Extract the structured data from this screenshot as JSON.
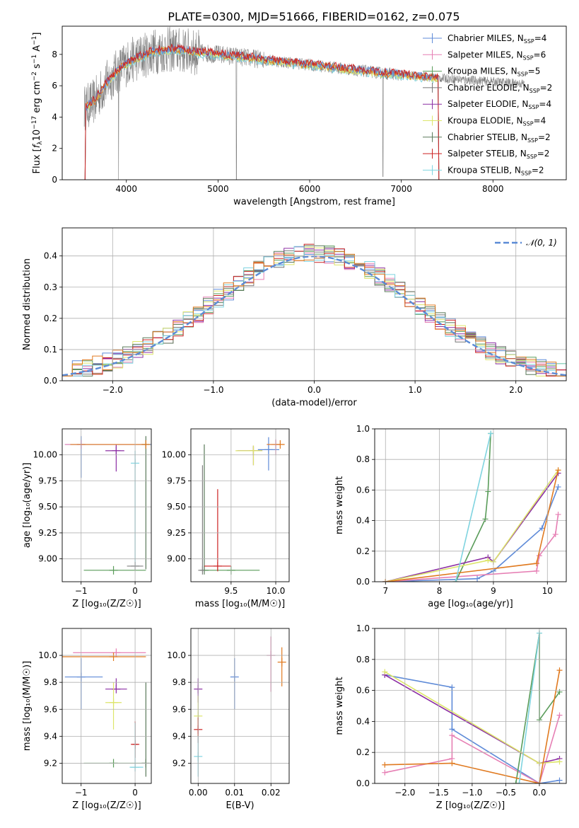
{
  "title": "PLATE=0300, MJD=51666, FIBERID=0162, z=0.075",
  "colors": {
    "Chabrier MILES": "#5f8bd8",
    "Salpeter MILES": "#e67fb4",
    "Kroupa MILES": "#5a9c5a",
    "Chabrier ELODIE": "#777777",
    "Salpeter ELODIE": "#8c2fa4",
    "Kroupa ELODIE": "#dde56a",
    "Chabrier STELIB": "#5a7a5a",
    "Salpeter STELIB": "#cc2222",
    "Kroupa STELIB": "#7fd4e0",
    "orange": "#e07a20",
    "spectrum": "#808080",
    "normal": "#5b8bd6"
  },
  "chart_data": [
    {
      "id": "spectrum",
      "type": "line",
      "xlabel": "wavelength [Angstrom, rest frame]",
      "ylabel_parts": [
        "Flux [",
        "f",
        "λ",
        "10",
        "−17",
        " erg cm",
        "−2",
        " s",
        "−1",
        " A",
        "−1",
        "]"
      ],
      "xlim": [
        3300,
        8800
      ],
      "ylim": [
        0,
        9.8
      ],
      "xticks": [
        4000,
        5000,
        6000,
        7000,
        8000
      ],
      "yticks": [
        0,
        2,
        4,
        6,
        8
      ],
      "grid": false,
      "legend_position": "right",
      "legend": [
        {
          "name": "Chabrier MILES",
          "nssp": "4",
          "color": "#5f8bd8"
        },
        {
          "name": "Salpeter MILES",
          "nssp": "6",
          "color": "#e67fb4"
        },
        {
          "name": "Kroupa MILES",
          "nssp": "5",
          "color": "#5a9c5a"
        },
        {
          "name": "Chabrier ELODIE",
          "nssp": "2",
          "color": "#777777"
        },
        {
          "name": "Salpeter ELODIE",
          "nssp": "4",
          "color": "#8c2fa4"
        },
        {
          "name": "Kroupa ELODIE",
          "nssp": "4",
          "color": "#dde56a"
        },
        {
          "name": "Chabrier STELIB",
          "nssp": "2",
          "color": "#5a7a5a"
        },
        {
          "name": "Salpeter STELIB",
          "nssp": "2",
          "color": "#cc2222"
        },
        {
          "name": "Kroupa STELIB",
          "nssp": "2",
          "color": "#7fd4e0"
        }
      ],
      "nssp_prefix": "N",
      "nssp_sub": "SSP",
      "continuum": {
        "x": [
          3550,
          3650,
          3800,
          3950,
          4050,
          4300,
          4500,
          4800,
          5000,
          5300,
          5600,
          5900,
          6200,
          6500,
          6800,
          7000,
          7200,
          7400
        ],
        "y": [
          4.6,
          5.0,
          6.3,
          7.2,
          7.6,
          8.2,
          8.3,
          8.1,
          8.0,
          7.8,
          7.6,
          7.4,
          7.2,
          7.0,
          6.8,
          6.7,
          6.6,
          6.5
        ]
      }
    },
    {
      "id": "residuals",
      "type": "step",
      "xlabel": "(data-model)/error",
      "ylabel": "Normed distribution",
      "xlim": [
        -2.5,
        2.5
      ],
      "ylim": [
        0,
        0.49
      ],
      "xticks": [
        -2,
        -1,
        0,
        1,
        2
      ],
      "yticks": [
        0.0,
        0.1,
        0.2,
        0.3,
        0.4
      ],
      "grid": true,
      "legend_position": "top-right",
      "legend_label": "𝒩(0, 1)",
      "normal": {
        "mean": 0,
        "sigma": 1
      }
    },
    {
      "id": "age-vs-Z",
      "type": "errorbar",
      "xlabel": "Z [log₁₀(Z/Z☉)]",
      "ylabel": "age  [log₁₀(age/yr)]",
      "xlim": [
        -1.35,
        0.3
      ],
      "ylim": [
        8.78,
        10.25
      ],
      "xticks": [
        -1,
        0
      ],
      "yticks": [
        9.0,
        9.25,
        9.5,
        9.75,
        10.0
      ],
      "grid": true,
      "points": [
        {
          "x": -1.0,
          "y": 10.1,
          "xl": 0.3,
          "xh": 1.3,
          "yl": 0.32,
          "yh": 0.08,
          "c": "#5f8bd8"
        },
        {
          "x": -1.0,
          "y": 10.1,
          "xl": 0.3,
          "xh": 1.2,
          "yl": 0.0,
          "yh": 0.0,
          "c": "#e67fb4"
        },
        {
          "x": -0.35,
          "y": 10.04,
          "xl": 0.2,
          "xh": 0.15,
          "yl": 0.2,
          "yh": 0.06,
          "c": "#8c2fa4"
        },
        {
          "x": 0.0,
          "y": 9.92,
          "xl": 0.0,
          "xh": 0.0,
          "yl": 1.0,
          "yh": 0.12,
          "c": "#7fd4e0"
        },
        {
          "x": 0.2,
          "y": 10.1,
          "xl": 0.0,
          "xh": 0.0,
          "yl": 1.2,
          "yh": 0.08,
          "c": "#5a7a5a"
        },
        {
          "x": 0.2,
          "y": 10.1,
          "xl": 1.4,
          "xh": 0.0,
          "yl": 0.0,
          "yh": 0.0,
          "c": "#e07a20"
        },
        {
          "x": -0.4,
          "y": 8.89,
          "xl": 0.55,
          "xh": 0.6,
          "yl": 0.0,
          "yh": 0.0,
          "c": "#5a9c5a"
        },
        {
          "x": 0.0,
          "y": 8.93,
          "xl": 0.15,
          "xh": 0.15,
          "yl": 0.0,
          "yh": 0.0,
          "c": "#808080"
        }
      ]
    },
    {
      "id": "age-vs-mass",
      "type": "errorbar",
      "xlabel": "mass [log₁₀(M/M☉)]",
      "xlim": [
        9.05,
        10.15
      ],
      "ylim": [
        8.78,
        10.25
      ],
      "xticks": [
        9.5,
        10.0
      ],
      "yticks": [
        9.0,
        9.25,
        9.5,
        9.75,
        10.0
      ],
      "grid": true,
      "points": [
        {
          "x": 9.92,
          "y": 10.05,
          "xl": 0.12,
          "xh": 0.12,
          "yl": 0.2,
          "yh": 0.12,
          "c": "#5f8bd8"
        },
        {
          "x": 10.0,
          "y": 10.1,
          "xl": 0.1,
          "xh": 0.05,
          "yl": 0.1,
          "yh": 0.05,
          "c": "#e67fb4"
        },
        {
          "x": 9.75,
          "y": 10.04,
          "xl": 0.18,
          "xh": 0.1,
          "yl": 0.14,
          "yh": 0.05,
          "c": "#8c2fa4"
        },
        {
          "x": 9.75,
          "y": 10.04,
          "xl": 0.2,
          "xh": 0.1,
          "yl": 0.14,
          "yh": 0.05,
          "c": "#dde56a"
        },
        {
          "x": 10.05,
          "y": 10.1,
          "xl": 0.15,
          "xh": 0.05,
          "yl": 0.0,
          "yh": 0.0,
          "c": "#e07a20"
        },
        {
          "x": 9.2,
          "y": 8.89,
          "xl": 0.0,
          "xh": 0.0,
          "yl": 0.0,
          "yh": 1.21,
          "c": "#5a7a5a"
        },
        {
          "x": 9.18,
          "y": 8.89,
          "xl": 0.0,
          "xh": 0.0,
          "yl": 0.0,
          "yh": 1.01,
          "c": "#808080"
        },
        {
          "x": 9.5,
          "y": 8.89,
          "xl": 0.3,
          "xh": 0.32,
          "yl": 0.0,
          "yh": 0.0,
          "c": "#5a9c5a"
        },
        {
          "x": 9.35,
          "y": 8.93,
          "xl": 0.15,
          "xh": 0.15,
          "yl": 0.05,
          "yh": 0.74,
          "c": "#cc2222"
        }
      ]
    },
    {
      "id": "massweight-vs-age",
      "type": "line",
      "xlabel": "age  [log₁₀(age/yr)]",
      "ylabel": "mass weight",
      "xlim": [
        6.8,
        10.35
      ],
      "ylim": [
        0,
        1.0
      ],
      "xticks": [
        7,
        8,
        9,
        10
      ],
      "yticks": [
        0.0,
        0.2,
        0.4,
        0.6,
        0.8,
        1.0
      ],
      "grid": true,
      "series": [
        {
          "c": "#5f8bd8",
          "x": [
            7.0,
            8.7,
            9.0,
            9.9,
            10.2
          ],
          "y": [
            0.0,
            0.02,
            0.07,
            0.35,
            0.62
          ]
        },
        {
          "c": "#e67fb4",
          "x": [
            7.0,
            9.8,
            9.85,
            10.15,
            10.2
          ],
          "y": [
            0.0,
            0.07,
            0.17,
            0.31,
            0.44
          ]
        },
        {
          "c": "#5a9c5a",
          "x": [
            8.3,
            8.85,
            8.9,
            8.95
          ],
          "y": [
            0.0,
            0.41,
            0.59,
            0.97
          ]
        },
        {
          "c": "#8c2fa4",
          "x": [
            7.0,
            8.9,
            9.0,
            10.2
          ],
          "y": [
            0.0,
            0.16,
            0.13,
            0.71
          ]
        },
        {
          "c": "#dde56a",
          "x": [
            7.0,
            8.9,
            9.0,
            10.2
          ],
          "y": [
            0.0,
            0.14,
            0.13,
            0.73
          ]
        },
        {
          "c": "#e07a20",
          "x": [
            7.0,
            9.8,
            10.2
          ],
          "y": [
            0.0,
            0.12,
            0.73
          ]
        },
        {
          "c": "#7fd4e0",
          "x": [
            8.3,
            8.95
          ],
          "y": [
            0.0,
            0.97
          ]
        }
      ]
    },
    {
      "id": "mass-vs-Z",
      "type": "errorbar",
      "xlabel": "Z [log₁₀(Z/Z☉)]",
      "ylabel": "mass [log₁₀(M/M☉)]",
      "xlim": [
        -1.35,
        0.3
      ],
      "ylim": [
        9.05,
        10.2
      ],
      "xticks": [
        -1,
        0
      ],
      "yticks": [
        9.2,
        9.4,
        9.6,
        9.8,
        10.0
      ],
      "grid": true,
      "points": [
        {
          "x": -1.0,
          "y": 9.84,
          "xl": 0.3,
          "xh": 0.4,
          "yl": 0.24,
          "yh": 0.14,
          "c": "#5f8bd8"
        },
        {
          "x": -0.35,
          "y": 10.02,
          "xl": 0.8,
          "xh": 0.55,
          "yl": 0.0,
          "yh": 0.0,
          "c": "#e67fb4"
        },
        {
          "x": -0.35,
          "y": 9.75,
          "xl": 0.2,
          "xh": 0.2,
          "yl": 0.0,
          "yh": 0.08,
          "c": "#8c2fa4"
        },
        {
          "x": -0.4,
          "y": 9.65,
          "xl": 0.15,
          "xh": 0.15,
          "yl": 0.2,
          "yh": 0.15,
          "c": "#dde56a"
        },
        {
          "x": -0.4,
          "y": 9.99,
          "xl": 0.95,
          "xh": 0.6,
          "yl": 0.0,
          "yh": 0.0,
          "c": "#e07a20"
        },
        {
          "x": -0.4,
          "y": 9.2,
          "xl": 0.55,
          "xh": 0.6,
          "yl": 0.0,
          "yh": 0.0,
          "c": "#5a9c5a"
        },
        {
          "x": 0.0,
          "y": 9.34,
          "xl": 0.05,
          "xh": 0.05,
          "yl": 0.1,
          "yh": 0.17,
          "c": "#cc2222"
        },
        {
          "x": 0.0,
          "y": 9.17,
          "xl": 0.1,
          "xh": 0.15,
          "yl": 0.0,
          "yh": 0.33,
          "c": "#7fd4e0"
        },
        {
          "x": 0.2,
          "y": 9.2,
          "xl": 0.0,
          "xh": 0.0,
          "yl": 0.1,
          "yh": 0.6,
          "c": "#5a7a5a"
        }
      ]
    },
    {
      "id": "mass-vs-ebv",
      "type": "errorbar",
      "xlabel": "E(B-V)",
      "xlim": [
        -0.002,
        0.025
      ],
      "ylim": [
        9.05,
        10.2
      ],
      "xticks": [
        0.0,
        0.01,
        0.02
      ],
      "yticks": [
        9.2,
        9.4,
        9.6,
        9.8,
        10.0
      ],
      "grid": true,
      "points": [
        {
          "x": 0.01,
          "y": 9.84,
          "xl": 0,
          "xh": 0,
          "yl": 0.24,
          "yh": 0.14,
          "c": "#5f8bd8"
        },
        {
          "x": 0.02,
          "y": 10.0,
          "xl": 0,
          "xh": 0,
          "yl": 0.27,
          "yh": 0.14,
          "c": "#e67fb4"
        },
        {
          "x": 0.023,
          "y": 9.95,
          "xl": 0,
          "xh": 0,
          "yl": 0.18,
          "yh": 0.11,
          "c": "#e07a20"
        },
        {
          "x": 0.0,
          "y": 9.75,
          "xl": 0,
          "xh": 0,
          "yl": 0.1,
          "yh": 0.08,
          "c": "#8c2fa4"
        },
        {
          "x": 0.0,
          "y": 9.55,
          "xl": 0,
          "xh": 0,
          "yl": 0.15,
          "yh": 0.15,
          "c": "#dde56a"
        },
        {
          "x": 0.0,
          "y": 9.45,
          "xl": 0,
          "xh": 0,
          "yl": 0.1,
          "yh": 0.09,
          "c": "#cc2222"
        },
        {
          "x": 0.0,
          "y": 9.25,
          "xl": 0,
          "xh": 0,
          "yl": 0.15,
          "yh": 0.15,
          "c": "#7fd4e0"
        }
      ]
    },
    {
      "id": "massweight-vs-Z",
      "type": "line",
      "xlabel": "Z [log₁₀(Z/Z☉)]",
      "ylabel": "mass weight",
      "xlim": [
        -2.45,
        0.4
      ],
      "ylim": [
        0,
        1.0
      ],
      "xticks": [
        -2.0,
        -1.5,
        -1.0,
        -0.5,
        0.0
      ],
      "yticks": [
        0.0,
        0.2,
        0.4,
        0.6,
        0.8,
        1.0
      ],
      "grid": true,
      "series": [
        {
          "c": "#5f8bd8",
          "x": [
            -2.3,
            -1.3,
            -1.3,
            0.0,
            0.3
          ],
          "y": [
            0.7,
            0.62,
            0.35,
            0.0,
            0.02
          ]
        },
        {
          "c": "#e67fb4",
          "x": [
            -2.3,
            -1.3,
            -1.3,
            0.0,
            0.3
          ],
          "y": [
            0.07,
            0.16,
            0.31,
            0.0,
            0.44
          ]
        },
        {
          "c": "#5a9c5a",
          "x": [
            -0.35,
            0.0,
            0.0,
            0.3
          ],
          "y": [
            0.0,
            0.97,
            0.41,
            0.59
          ]
        },
        {
          "c": "#8c2fa4",
          "x": [
            -2.3,
            0.0,
            0.3
          ],
          "y": [
            0.7,
            0.13,
            0.16
          ]
        },
        {
          "c": "#dde56a",
          "x": [
            -2.3,
            0.0,
            0.3
          ],
          "y": [
            0.72,
            0.13,
            0.14
          ]
        },
        {
          "c": "#e07a20",
          "x": [
            -2.3,
            -1.3,
            0.0,
            0.3
          ],
          "y": [
            0.12,
            0.13,
            0.0,
            0.73
          ]
        },
        {
          "c": "#7fd4e0",
          "x": [
            -0.3,
            0.0
          ],
          "y": [
            0.0,
            0.97
          ]
        }
      ]
    }
  ]
}
